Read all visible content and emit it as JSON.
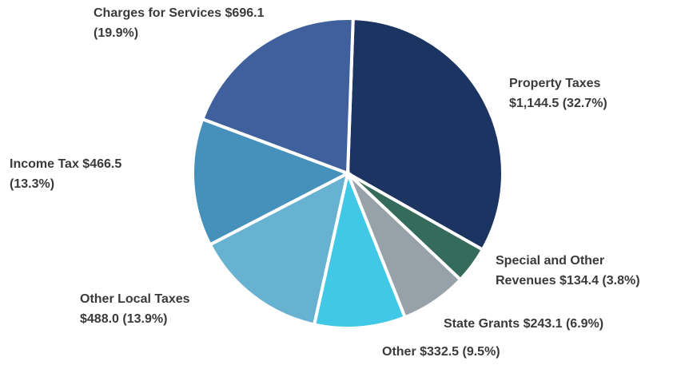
{
  "chart_data": {
    "type": "pie",
    "categories": [
      "Property Taxes",
      "Special and Other Revenues",
      "State Grants",
      "Other",
      "Other Local Taxes",
      "Income Tax",
      "Charges for Services"
    ],
    "values": [
      1144.5,
      134.4,
      243.1,
      332.5,
      488.0,
      466.5,
      696.1
    ],
    "value_labels": [
      "$1,144.5 (32.7%)",
      "$134.4 (3.8%)",
      "$243.1 (6.9%)",
      "$332.5 (9.5%)",
      "$488.0 (13.9%)",
      "$466.5 (13.3%)",
      "$696.1 (19.9%)"
    ],
    "colors": [
      "#1b3461",
      "#356b5a",
      "#97a1a8",
      "#40c8e6",
      "#67b2d0",
      "#4591bb",
      "#3f609c"
    ]
  }
}
